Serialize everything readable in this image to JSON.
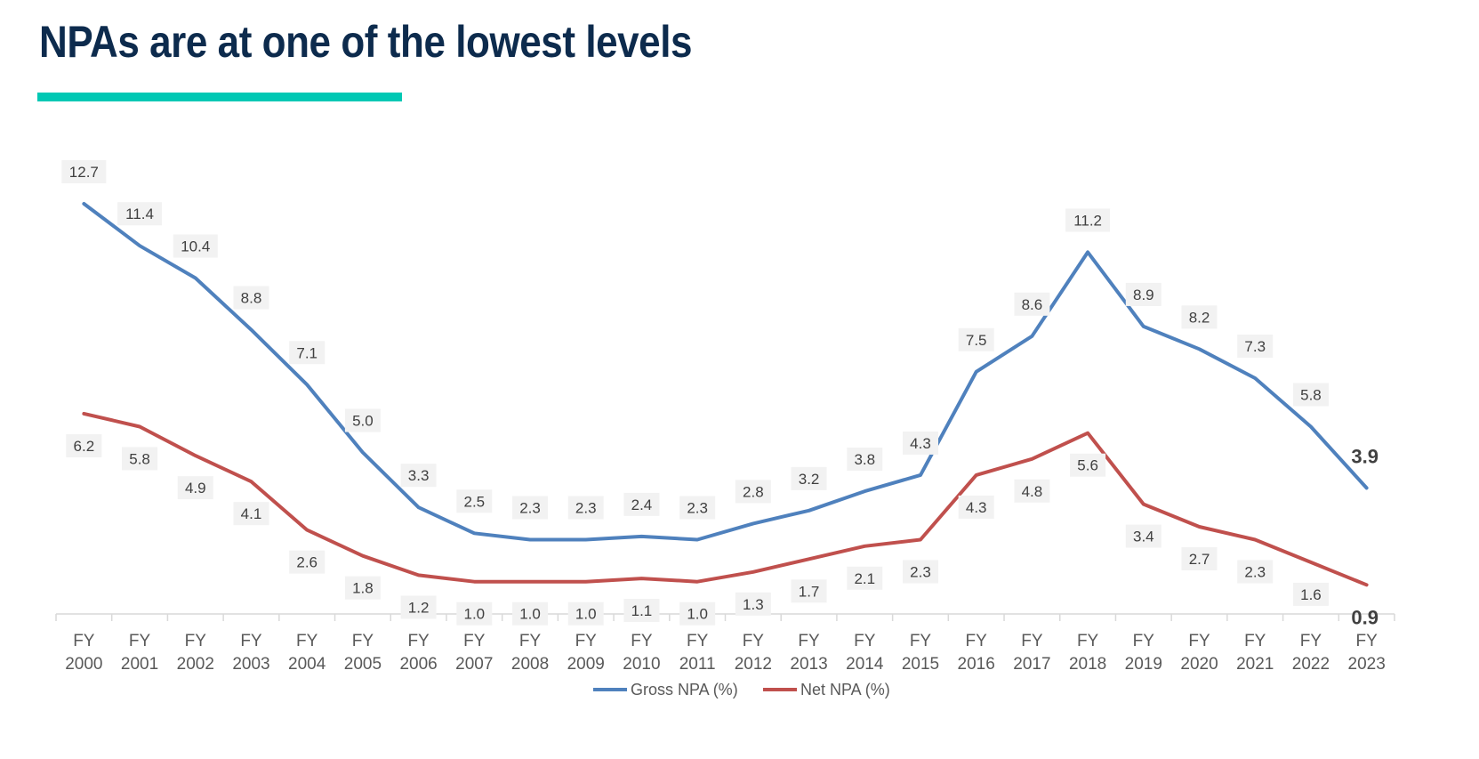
{
  "page": {
    "title": "NPAs are at one of the lowest levels",
    "accent_color": "#00c8b4",
    "title_color": "#0d2b4d"
  },
  "chart_data": {
    "type": "line",
    "title": "",
    "xlabel": "",
    "ylabel": "",
    "categories": [
      [
        "FY",
        "2000"
      ],
      [
        "FY",
        "2001"
      ],
      [
        "FY",
        "2002"
      ],
      [
        "FY",
        "2003"
      ],
      [
        "FY",
        "2004"
      ],
      [
        "FY",
        "2005"
      ],
      [
        "FY",
        "2006"
      ],
      [
        "FY",
        "2007"
      ],
      [
        "FY",
        "2008"
      ],
      [
        "FY",
        "2009"
      ],
      [
        "FY",
        "2010"
      ],
      [
        "FY",
        "2011"
      ],
      [
        "FY",
        "2012"
      ],
      [
        "FY",
        "2013"
      ],
      [
        "FY",
        "2014"
      ],
      [
        "FY",
        "2015"
      ],
      [
        "FY",
        "2016"
      ],
      [
        "FY",
        "2017"
      ],
      [
        "FY",
        "2018"
      ],
      [
        "FY",
        "2019"
      ],
      [
        "FY",
        "2020"
      ],
      [
        "FY",
        "2021"
      ],
      [
        "FY",
        "2022"
      ],
      [
        "FY",
        "2023"
      ]
    ],
    "ylim": [
      0,
      14
    ],
    "grid": false,
    "legend_position": "bottom",
    "series": [
      {
        "name": "Gross NPA (%)",
        "color": "#4f81bd",
        "label_position": "above",
        "values": [
          12.7,
          11.4,
          10.4,
          8.8,
          7.1,
          5.0,
          3.3,
          2.5,
          2.3,
          2.3,
          2.4,
          2.3,
          2.8,
          3.2,
          3.8,
          4.3,
          7.5,
          8.6,
          11.2,
          8.9,
          8.2,
          7.3,
          5.8,
          3.9
        ],
        "labels": [
          "12.7",
          "11.4",
          "10.4",
          "8.8",
          "7.1",
          "5.0",
          "3.3",
          "2.5",
          "2.3",
          "2.3",
          "2.4",
          "2.3",
          "2.8",
          "3.2",
          "3.8",
          "4.3",
          "7.5",
          "8.6",
          "11.2",
          "8.9",
          "8.2",
          "7.3",
          "5.8",
          "3.9"
        ],
        "bold_last_label": true
      },
      {
        "name": "Net NPA (%)",
        "color": "#c0504d",
        "label_position": "below",
        "values": [
          6.2,
          5.8,
          4.9,
          4.1,
          2.6,
          1.8,
          1.2,
          1.0,
          1.0,
          1.0,
          1.1,
          1.0,
          1.3,
          1.7,
          2.1,
          2.3,
          4.3,
          4.8,
          5.6,
          3.4,
          2.7,
          2.3,
          1.6,
          0.9
        ],
        "labels": [
          "6.2",
          "5.8",
          "4.9",
          "4.1",
          "2.6",
          "1.8",
          "1.2",
          "1.0",
          "1.0",
          "1.0",
          "1.1",
          "1.0",
          "1.3",
          "1.7",
          "2.1",
          "2.3",
          "4.3",
          "4.8",
          "5.6",
          "3.4",
          "2.7",
          "2.3",
          "1.6",
          "0.9"
        ],
        "bold_last_label": true
      }
    ]
  }
}
